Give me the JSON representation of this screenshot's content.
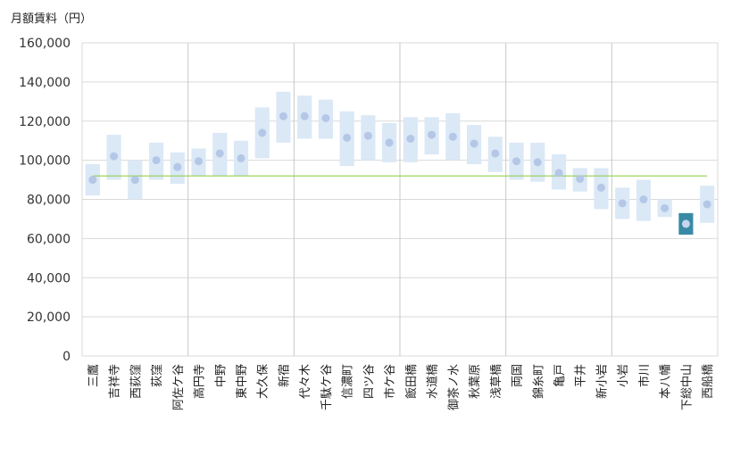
{
  "chart_data": {
    "type": "range-dot",
    "ylabel": "月額賃料（円）",
    "ylim": [
      0,
      160000
    ],
    "yticks": [
      0,
      20000,
      40000,
      60000,
      80000,
      100000,
      120000,
      140000,
      160000
    ],
    "ytick_labels": [
      "0",
      "20,000",
      "40,000",
      "60,000",
      "80,000",
      "100,000",
      "120,000",
      "140,000",
      "160,000"
    ],
    "reference_line": 92000,
    "group_boundaries_after_index": [
      4,
      9,
      14,
      19,
      24
    ],
    "highlight": "下総中山",
    "colors": {
      "range_fill": "#dbe8f6",
      "dot": "#b4c7e7",
      "highlight_fill": "#3a8aa6",
      "highlight_dot": "#c8d6ee",
      "reference_line": "#92d050",
      "grid": "#d9d9d9",
      "group_divider": "#c8c8c8"
    },
    "categories": [
      "三鷹",
      "吉祥寺",
      "西荻窪",
      "荻窪",
      "阿佐ケ谷",
      "高円寺",
      "中野",
      "東中野",
      "大久保",
      "新宿",
      "代々木",
      "千駄ケ谷",
      "信濃町",
      "四ツ谷",
      "市ケ谷",
      "飯田橋",
      "水道橋",
      "御茶ノ水",
      "秋葉原",
      "浅草橋",
      "両国",
      "錦糸町",
      "亀戸",
      "平井",
      "新小岩",
      "小岩",
      "市川",
      "本八幡",
      "下総中山",
      "西船橋"
    ],
    "series": [
      {
        "name": "min",
        "values": [
          82000,
          90000,
          80000,
          90000,
          88000,
          92000,
          92000,
          92000,
          101000,
          109000,
          111000,
          111000,
          97000,
          100000,
          99000,
          99000,
          103000,
          100000,
          98000,
          94000,
          90000,
          89000,
          85000,
          84000,
          75000,
          70000,
          69000,
          71000,
          62000,
          68000
        ]
      },
      {
        "name": "max",
        "values": [
          98000,
          113000,
          100000,
          109000,
          104000,
          106000,
          114000,
          110000,
          127000,
          135000,
          133000,
          131000,
          125000,
          123000,
          119000,
          122000,
          122000,
          124000,
          118000,
          112000,
          109000,
          109000,
          103000,
          96000,
          96000,
          86000,
          90000,
          80000,
          73000,
          87000
        ]
      },
      {
        "name": "average",
        "values": [
          90000,
          102000,
          90000,
          100000,
          96500,
          99500,
          103500,
          101000,
          114000,
          122500,
          122500,
          121500,
          111500,
          112500,
          109000,
          111000,
          113000,
          112000,
          108500,
          103500,
          99500,
          99000,
          93500,
          90500,
          86000,
          78000,
          80000,
          75500,
          67500,
          77500
        ]
      }
    ]
  }
}
